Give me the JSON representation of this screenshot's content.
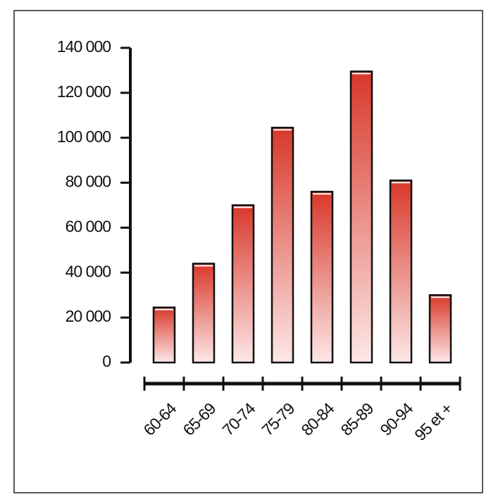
{
  "chart_data": {
    "type": "bar",
    "categories": [
      "60-64",
      "65-69",
      "70-74",
      "75-79",
      "80-84",
      "85-89",
      "90-94",
      "95 et +"
    ],
    "values": [
      24500,
      44000,
      70000,
      104500,
      76000,
      129500,
      81000,
      30000
    ],
    "color": "#d8382a",
    "ylim": [
      0,
      140000
    ],
    "yticks": [
      0,
      {
        "value": 20000,
        "label": "20 000"
      },
      {
        "value": 40000,
        "label": "40 000"
      },
      {
        "value": 60000,
        "label": "60 000"
      },
      {
        "value": 80000,
        "label": "80 000"
      },
      {
        "value": 100000,
        "label": "100 000"
      },
      {
        "value": 120000,
        "label": "120 000"
      },
      {
        "value": 140000,
        "label": "140 000"
      }
    ],
    "grid": false
  }
}
